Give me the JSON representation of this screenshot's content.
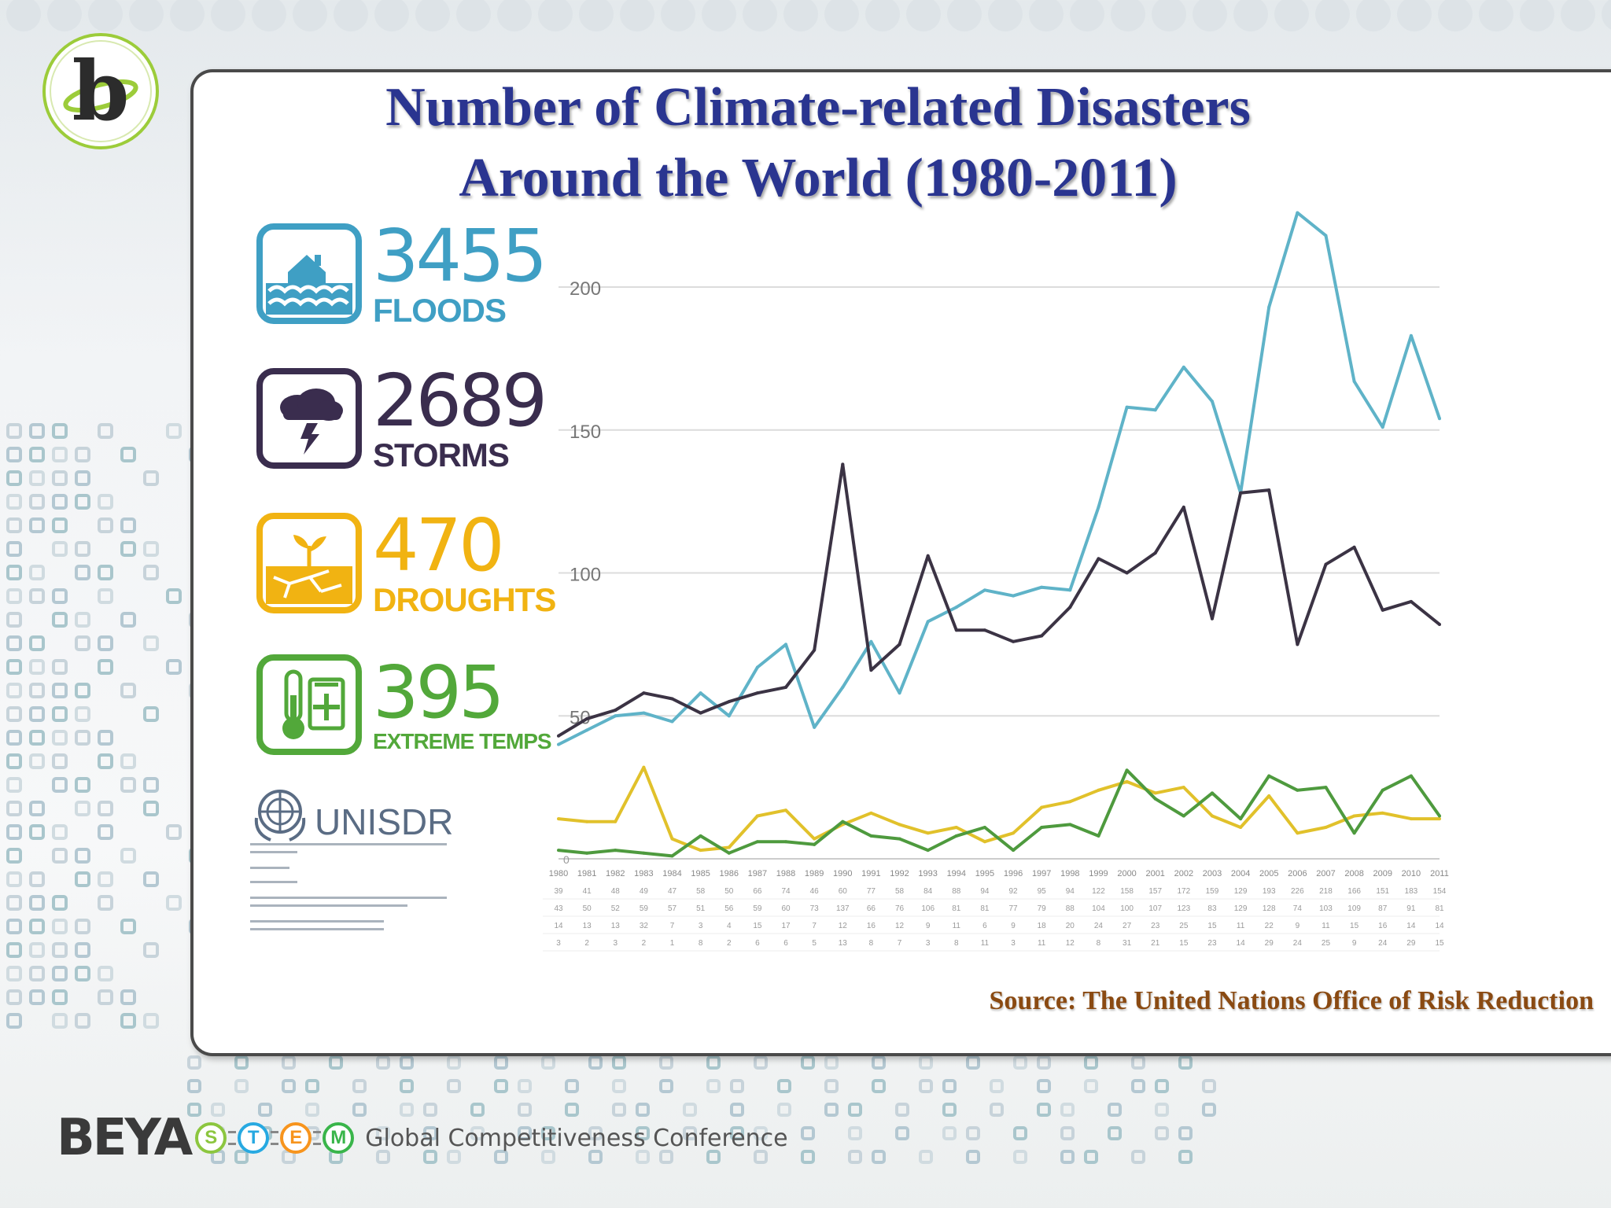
{
  "slide": {
    "title_line1": "Number of Climate-related Disasters",
    "title_line2": "Around the World (1980-2011)",
    "source": "Source:  The United Nations Office of Risk Reduction"
  },
  "stats": [
    {
      "number": "3455",
      "label": "FLOODS",
      "color": "#3f9fc4",
      "icon": "flood-house-icon"
    },
    {
      "number": "2689",
      "label": "STORMS",
      "color": "#3a2d4e",
      "icon": "storm-cloud-lightning-icon"
    },
    {
      "number": "470",
      "label": "DROUGHTS",
      "color": "#f1b312",
      "icon": "drought-sprout-icon"
    },
    {
      "number": "395",
      "label": "EXTREME TEMPS",
      "color": "#52a83a",
      "icon": "thermometer-icon"
    }
  ],
  "unisdr": {
    "name": "UNISDR",
    "icon": "un-emblem-icon"
  },
  "footer": {
    "brand": "BEYA",
    "stem_letters": [
      "S",
      "T",
      "E",
      "M"
    ],
    "stem_colors": [
      "#8cc63f",
      "#27a9e1",
      "#f7941d",
      "#39b54a"
    ],
    "conference": "Global Competitiveness Conference"
  },
  "chart_data": {
    "type": "line",
    "x": [
      1980,
      1981,
      1982,
      1983,
      1984,
      1985,
      1986,
      1987,
      1988,
      1989,
      1990,
      1991,
      1992,
      1993,
      1994,
      1995,
      1996,
      1997,
      1998,
      1999,
      2000,
      2001,
      2002,
      2003,
      2004,
      2005,
      2006,
      2007,
      2008,
      2009,
      2010,
      2011
    ],
    "ylim": [
      0,
      230
    ],
    "yticks": [
      50,
      100,
      150,
      200
    ],
    "grid": true,
    "series": [
      {
        "color": "#5fb3c8",
        "values": [
          40,
          45,
          50,
          51,
          48,
          58,
          50,
          67,
          75,
          46,
          60,
          76,
          58,
          83,
          88,
          94,
          92,
          95,
          94,
          123,
          158,
          157,
          172,
          160,
          128,
          193,
          226,
          218,
          167,
          151,
          183,
          154
        ]
      },
      {
        "color": "#3b3344",
        "values": [
          43,
          49,
          52,
          58,
          56,
          51,
          55,
          58,
          60,
          73,
          138,
          66,
          75,
          106,
          80,
          80,
          76,
          78,
          88,
          105,
          100,
          107,
          123,
          84,
          128,
          129,
          75,
          103,
          109,
          87,
          90,
          82
        ]
      },
      {
        "color": "#e1c12b",
        "values": [
          14,
          13,
          13,
          32,
          7,
          3,
          4,
          15,
          17,
          7,
          12,
          16,
          12,
          9,
          11,
          6,
          9,
          18,
          20,
          24,
          27,
          23,
          25,
          15,
          11,
          22,
          9,
          11,
          15,
          16,
          14,
          14
        ]
      },
      {
        "color": "#4e9a3e",
        "values": [
          3,
          2,
          3,
          2,
          1,
          8,
          2,
          6,
          6,
          5,
          13,
          8,
          7,
          3,
          8,
          11,
          3,
          11,
          12,
          8,
          31,
          21,
          15,
          23,
          14,
          29,
          24,
          25,
          9,
          24,
          29,
          15
        ]
      }
    ],
    "table_rows": [
      {
        "values": [
          39,
          41,
          48,
          49,
          47,
          58,
          50,
          66,
          74,
          46,
          60,
          77,
          58,
          84,
          88,
          94,
          92,
          95,
          94,
          122,
          158,
          157,
          172,
          159,
          129,
          193,
          226,
          218,
          166,
          151,
          183,
          154
        ]
      },
      {
        "values": [
          43,
          50,
          52,
          59,
          57,
          51,
          56,
          59,
          60,
          73,
          137,
          66,
          76,
          106,
          81,
          81,
          77,
          79,
          88,
          104,
          100,
          107,
          123,
          83,
          129,
          128,
          74,
          103,
          109,
          87,
          91,
          81
        ]
      },
      {
        "values": [
          14,
          13,
          13,
          32,
          7,
          3,
          4,
          15,
          17,
          7,
          12,
          16,
          12,
          9,
          11,
          6,
          9,
          18,
          20,
          24,
          27,
          23,
          25,
          15,
          11,
          22,
          9,
          11,
          15,
          16,
          14,
          14
        ]
      },
      {
        "values": [
          3,
          2,
          3,
          2,
          1,
          8,
          2,
          6,
          6,
          5,
          13,
          8,
          7,
          3,
          8,
          11,
          3,
          11,
          12,
          8,
          31,
          21,
          15,
          23,
          14,
          29,
          24,
          25,
          9,
          24,
          29,
          15
        ]
      }
    ]
  }
}
